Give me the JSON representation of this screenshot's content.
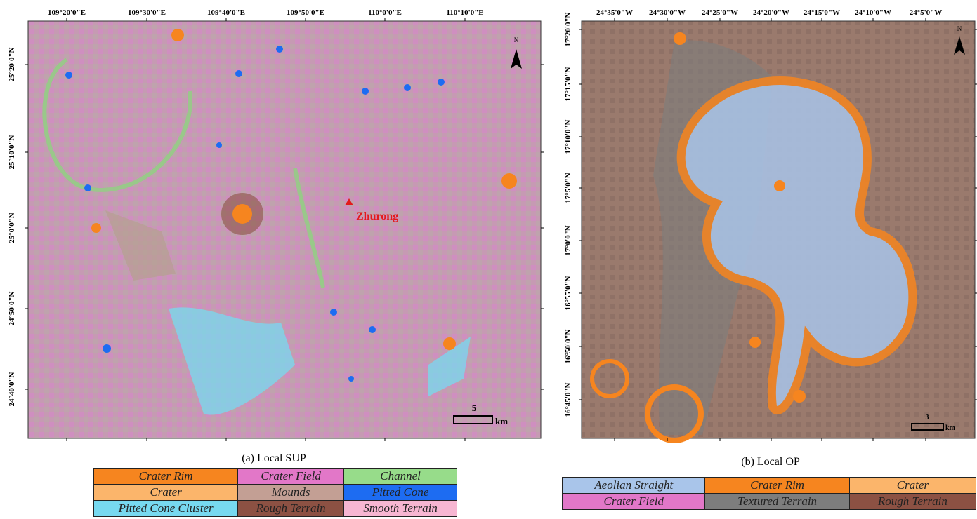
{
  "panels": [
    {
      "caption": "(a) Local SUP",
      "top_ticks": [
        "109°20'0\"E",
        "109°30'0\"E",
        "109°40'0\"E",
        "109°50'0\"E",
        "110°0'0\"E",
        "110°10'0\"E"
      ],
      "left_ticks": [
        "25°20'0\"N",
        "25°10'0\"N",
        "25°0'0\"N",
        "24°50'0\"N",
        "24°40'0\"N"
      ],
      "place_label": "Zhurong",
      "north": "N",
      "scale": {
        "value": 5,
        "unit": "km"
      },
      "legend": [
        {
          "label": "Crater Rim",
          "color": "#f6851f"
        },
        {
          "label": "Crater Field",
          "color": "#e277c8"
        },
        {
          "label": "Channel",
          "color": "#97dc8a"
        },
        {
          "label": "Crater",
          "color": "#fbb56b"
        },
        {
          "label": "Mounds",
          "color": "#c39f94"
        },
        {
          "label": "Pitted Cone",
          "color": "#1d6cf2"
        },
        {
          "label": "Pitted Cone Cluster",
          "color": "#77d9f0"
        },
        {
          "label": "Rough Terrain",
          "color": "#8c5143"
        },
        {
          "label": "Smooth Terrain",
          "color": "#f7b6d2"
        }
      ]
    },
    {
      "caption": "(b) Local OP",
      "top_ticks": [
        "24°35'0\"W",
        "24°30'0\"W",
        "24°25'0\"W",
        "24°20'0\"W",
        "24°15'0\"W",
        "24°10'0\"W",
        "24°5'0\"W"
      ],
      "left_ticks": [
        "17°20'0\"N",
        "17°15'0\"N",
        "17°10'0\"N",
        "17°5'0\"N",
        "17°0'0\"N",
        "16°55'0\"N",
        "16°50'0\"N",
        "16°45'0\"N"
      ],
      "north": "N",
      "scale": {
        "value": 3,
        "unit": "km"
      },
      "legend": [
        {
          "label": "Aeolian Straight",
          "color": "#a9c5ea"
        },
        {
          "label": "Crater Rim",
          "color": "#f6851f"
        },
        {
          "label": "Crater",
          "color": "#fbb56b"
        },
        {
          "label": "Crater Field",
          "color": "#e277c8"
        },
        {
          "label": "Textured Terrain",
          "color": "#7d7d7d"
        },
        {
          "label": "Rough Terrain",
          "color": "#8c5143"
        }
      ]
    }
  ]
}
